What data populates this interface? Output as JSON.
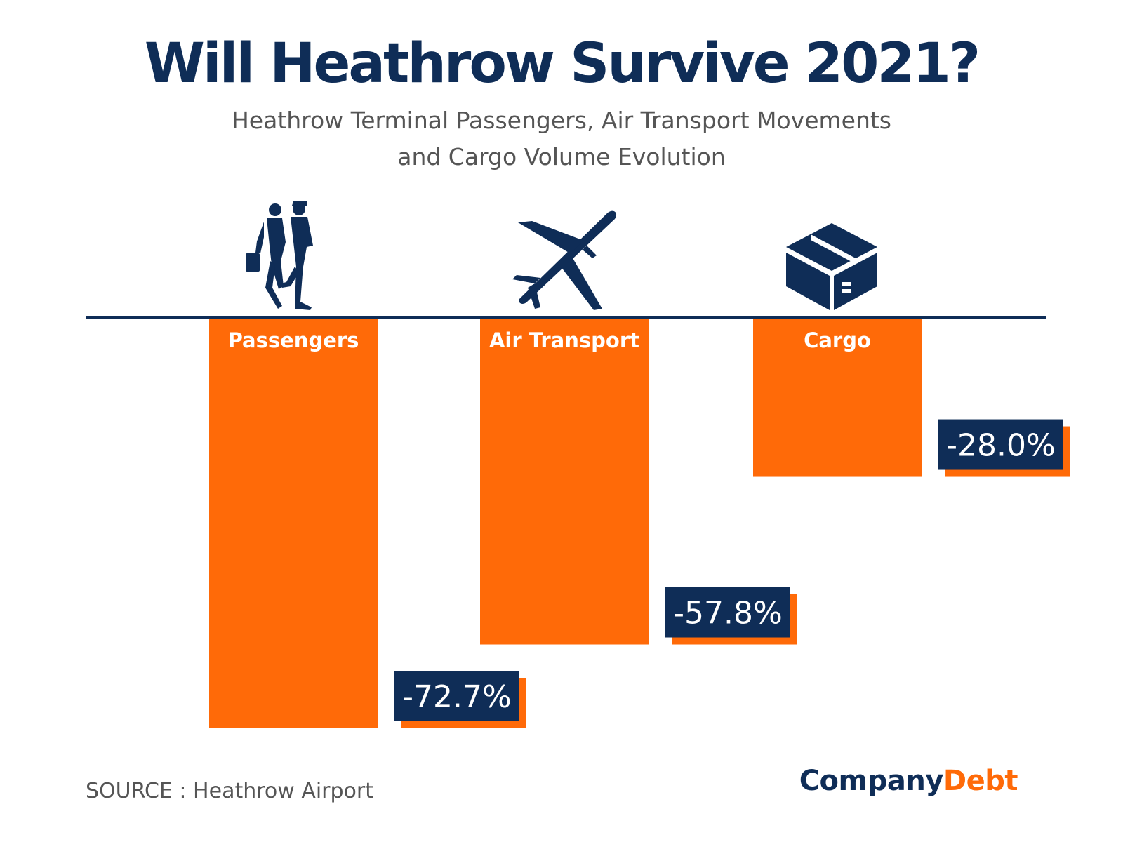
{
  "title": "Will Heathrow Survive 2021?",
  "subtitle_line1": "Heathrow Terminal Passengers, Air Transport Movements",
  "subtitle_line2": "and Cargo Volume Evolution",
  "source": "SOURCE : Heathrow Airport",
  "brand": {
    "part1": "Company",
    "part2": "Debt"
  },
  "colors": {
    "bar": "#ff6a08",
    "navy": "#0f2d57",
    "text_gray": "#555555"
  },
  "chart_data": {
    "type": "bar",
    "categories": [
      "Passengers",
      "Air Transport",
      "Cargo"
    ],
    "values": [
      -72.7,
      -57.8,
      -28.0
    ],
    "value_labels": [
      "-72.7%",
      "-57.8%",
      "-28.0%"
    ],
    "icons": [
      "people-icon",
      "airplane-icon",
      "box-icon"
    ],
    "ylim": [
      -72.7,
      0
    ]
  }
}
